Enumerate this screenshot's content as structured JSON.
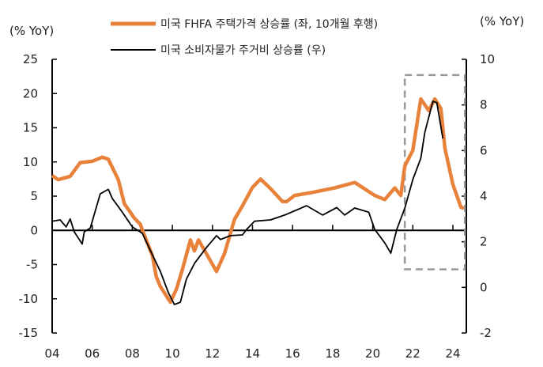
{
  "chart_data": {
    "type": "line",
    "left_axis": {
      "unit_label": "(% YoY)",
      "ylim": [
        -15,
        25
      ],
      "ticks": [
        "25",
        "20",
        "15",
        "10",
        "5",
        "0",
        "-5",
        "-10",
        "-15"
      ]
    },
    "right_axis": {
      "unit_label": "(% YoY)",
      "ylim": [
        -2,
        10
      ],
      "ticks": [
        "10",
        "8",
        "6",
        "4",
        "2",
        "0",
        "-2"
      ]
    },
    "x_axis": {
      "xlim": [
        2004,
        2024.7
      ],
      "ticks": [
        "04",
        "06",
        "08",
        "10",
        "12",
        "14",
        "16",
        "18",
        "20",
        "22",
        "24"
      ]
    },
    "legend_placement": "top-center",
    "series": [
      {
        "name": "미국 FHFA 주택가격 상승률 (좌, 10개월 후행)",
        "axis": "left",
        "color": "#e8823a",
        "points": [
          [
            2004,
            8.0
          ],
          [
            2004.3,
            7.4
          ],
          [
            2004.9,
            7.9
          ],
          [
            2005.4,
            9.9
          ],
          [
            2006.0,
            10.1
          ],
          [
            2006.5,
            10.7
          ],
          [
            2006.8,
            10.4
          ],
          [
            2007.3,
            7.4
          ],
          [
            2007.6,
            3.9
          ],
          [
            2008.1,
            1.8
          ],
          [
            2008.4,
            0.9
          ],
          [
            2008.6,
            -0.7
          ],
          [
            2009.0,
            -3.7
          ],
          [
            2009.2,
            -6.8
          ],
          [
            2009.4,
            -8.2
          ],
          [
            2009.9,
            -10.5
          ],
          [
            2010.2,
            -8.6
          ],
          [
            2010.5,
            -5.7
          ],
          [
            2010.9,
            -1.4
          ],
          [
            2011.1,
            -3.0
          ],
          [
            2011.3,
            -1.4
          ],
          [
            2011.7,
            -3.4
          ],
          [
            2012.2,
            -6.0
          ],
          [
            2012.6,
            -3.4
          ],
          [
            2013.1,
            1.6
          ],
          [
            2013.5,
            3.6
          ],
          [
            2014.0,
            6.3
          ],
          [
            2014.4,
            7.5
          ],
          [
            2014.9,
            6.1
          ],
          [
            2015.5,
            4.2
          ],
          [
            2015.7,
            4.2
          ],
          [
            2016.1,
            5.1
          ],
          [
            2016.9,
            5.5
          ],
          [
            2018.1,
            6.2
          ],
          [
            2019.1,
            7.0
          ],
          [
            2020.1,
            5.1
          ],
          [
            2020.6,
            4.5
          ],
          [
            2021.1,
            6.2
          ],
          [
            2021.4,
            5.1
          ],
          [
            2021.6,
            9.4
          ],
          [
            2022.0,
            11.7
          ],
          [
            2022.4,
            19.2
          ],
          [
            2022.8,
            17.5
          ],
          [
            2023.1,
            19.2
          ],
          [
            2023.4,
            17.8
          ],
          [
            2023.6,
            12.0
          ],
          [
            2024.0,
            6.7
          ],
          [
            2024.4,
            3.4
          ],
          [
            2024.55,
            3.2
          ]
        ]
      },
      {
        "name": "미국 소비자물가 주거비 상승률 (우)",
        "axis": "right",
        "color": "#000000",
        "points": [
          [
            2004,
            2.9
          ],
          [
            2004.4,
            2.96
          ],
          [
            2004.7,
            2.65
          ],
          [
            2004.9,
            3.0
          ],
          [
            2005.1,
            2.44
          ],
          [
            2005.5,
            1.9
          ],
          [
            2005.6,
            2.44
          ],
          [
            2005.9,
            2.6
          ],
          [
            2006.2,
            3.5
          ],
          [
            2006.4,
            4.1
          ],
          [
            2006.8,
            4.3
          ],
          [
            2007.0,
            3.9
          ],
          [
            2007.5,
            3.3
          ],
          [
            2008.0,
            2.65
          ],
          [
            2008.5,
            2.37
          ],
          [
            2009.0,
            1.43
          ],
          [
            2009.4,
            0.7
          ],
          [
            2009.8,
            -0.23
          ],
          [
            2010.1,
            -0.75
          ],
          [
            2010.4,
            -0.65
          ],
          [
            2010.7,
            0.36
          ],
          [
            2011.1,
            1.05
          ],
          [
            2011.7,
            1.75
          ],
          [
            2012.2,
            2.27
          ],
          [
            2012.4,
            2.1
          ],
          [
            2012.9,
            2.27
          ],
          [
            2013.5,
            2.3
          ],
          [
            2013.7,
            2.54
          ],
          [
            2014.1,
            2.9
          ],
          [
            2014.9,
            2.96
          ],
          [
            2015.6,
            3.17
          ],
          [
            2016.7,
            3.58
          ],
          [
            2017.5,
            3.17
          ],
          [
            2018.2,
            3.5
          ],
          [
            2018.6,
            3.17
          ],
          [
            2019.1,
            3.48
          ],
          [
            2019.8,
            3.3
          ],
          [
            2020.1,
            2.54
          ],
          [
            2020.6,
            1.95
          ],
          [
            2020.9,
            1.5
          ],
          [
            2021.2,
            2.54
          ],
          [
            2021.6,
            3.48
          ],
          [
            2022.0,
            4.73
          ],
          [
            2022.4,
            5.66
          ],
          [
            2022.6,
            6.8
          ],
          [
            2023.0,
            8.16
          ],
          [
            2023.2,
            8.1
          ],
          [
            2023.5,
            6.53
          ]
        ]
      }
    ],
    "annotations": [
      {
        "type": "dashed-box",
        "x_range": [
          2021.6,
          2024.6
        ],
        "y_range_left": [
          -5.7,
          22.7
        ],
        "color": "#999999"
      }
    ]
  }
}
